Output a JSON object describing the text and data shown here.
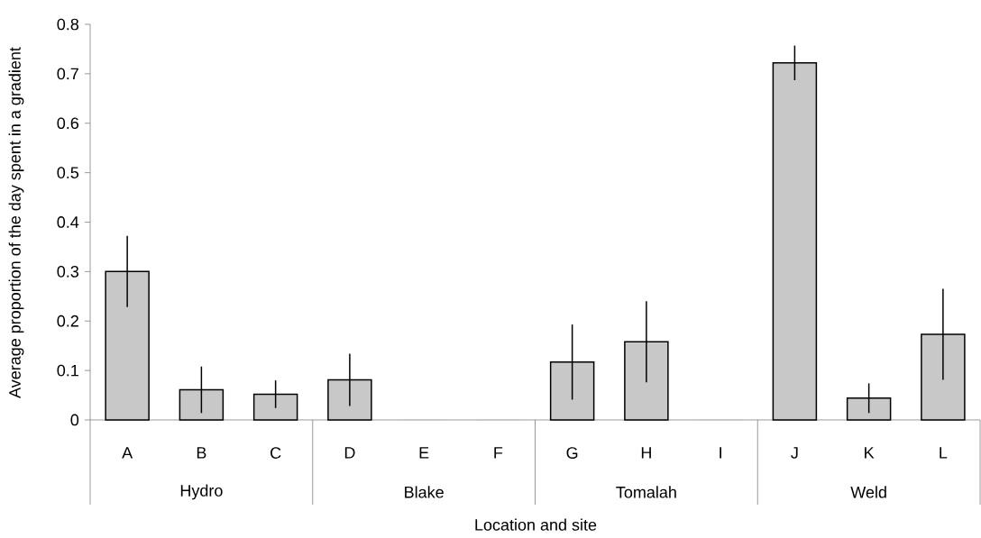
{
  "chart_data": {
    "type": "bar",
    "xlabel": "Location and site",
    "ylabel": "Average proportion of the day spent in a gradient",
    "categories": [
      "A",
      "B",
      "C",
      "D",
      "E",
      "F",
      "G",
      "H",
      "I",
      "J",
      "K",
      "L"
    ],
    "values": [
      0.3,
      0.061,
      0.052,
      0.081,
      0,
      0,
      0.117,
      0.158,
      0,
      0.722,
      0.044,
      0.173
    ],
    "errors": [
      0.072,
      0.047,
      0.028,
      0.053,
      null,
      null,
      0.076,
      0.082,
      null,
      0.035,
      0.03,
      0.092
    ],
    "color": "#c8c8c8",
    "ylim": [
      0,
      0.8
    ],
    "yticks": [
      0,
      0.1,
      0.2,
      0.3,
      0.4,
      0.5,
      0.6,
      0.7,
      0.8
    ],
    "annotations": [
      "Hydro",
      "Blake",
      "Tomalah",
      "Weld"
    ],
    "grid": false
  }
}
